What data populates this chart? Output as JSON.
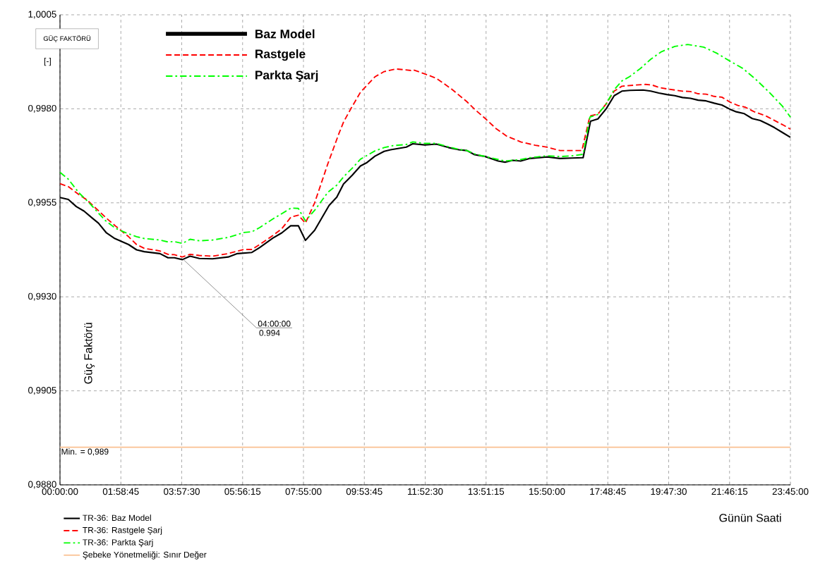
{
  "chart_data": {
    "type": "line",
    "xlabel": "Günün Saati",
    "ylabel": "Güç Faktörü",
    "xlim": [
      0,
      23.75
    ],
    "ylim": [
      0.988,
      1.0005
    ],
    "xticks": [
      {
        "value": 0,
        "label": "00:00:00"
      },
      {
        "value": 1.97917,
        "label": "01:58:45"
      },
      {
        "value": 3.95833,
        "label": "03:57:30"
      },
      {
        "value": 5.9375,
        "label": "05:56:15"
      },
      {
        "value": 7.91667,
        "label": "07:55:00"
      },
      {
        "value": 9.89583,
        "label": "09:53:45"
      },
      {
        "value": 11.875,
        "label": "11:52:30"
      },
      {
        "value": 13.85417,
        "label": "13:51:15"
      },
      {
        "value": 15.83333,
        "label": "15:50:00"
      },
      {
        "value": 17.8125,
        "label": "17:48:45"
      },
      {
        "value": 19.79167,
        "label": "19:47:30"
      },
      {
        "value": 21.77083,
        "label": "21:46:15"
      },
      {
        "value": 23.75,
        "label": "23:45:00"
      }
    ],
    "yticks": [
      {
        "value": 0.988,
        "label": "0,9880"
      },
      {
        "value": 0.9905,
        "label": "0,9905"
      },
      {
        "value": 0.993,
        "label": "0,9930"
      },
      {
        "value": 0.9955,
        "label": "0,9955"
      },
      {
        "value": 0.998,
        "label": "0,9980"
      },
      {
        "value": 1.0005,
        "label": "1,0005"
      }
    ],
    "grid": true,
    "legend": "bottom",
    "series": [
      {
        "name": "TR-36: Baz Model",
        "color": "#000000",
        "line_style": "solid",
        "x": [
          0,
          0.27,
          0.53,
          0.78,
          1.04,
          1.25,
          1.51,
          1.76,
          2.23,
          2.49,
          2.74,
          3.25,
          3.51,
          3.72,
          3.98,
          4.23,
          4.53,
          4.96,
          5.47,
          5.77,
          6.24,
          6.49,
          6.92,
          7.21,
          7.5,
          7.75,
          7.98,
          8.28,
          8.75,
          9.0,
          9.22,
          9.51,
          9.77,
          9.98,
          10.24,
          10.54,
          10.75,
          11.26,
          11.47,
          11.86,
          12.24,
          12.63,
          12.97,
          13.23,
          13.48,
          13.83,
          14.25,
          14.47,
          14.72,
          14.98,
          15.28,
          15.84,
          16.26,
          16.65,
          17.01,
          17.25,
          17.49,
          17.76,
          18.02,
          18.27,
          18.53,
          18.96,
          19.21,
          19.47,
          19.73,
          19.99,
          20.24,
          20.5,
          20.75,
          21.01,
          21.27,
          21.52,
          21.78,
          21.99,
          22.25,
          22.51,
          22.77,
          23.02,
          23.23,
          23.49,
          23.75
        ],
        "values": [
          0.99564,
          0.99559,
          0.9954,
          0.99528,
          0.9951,
          0.99496,
          0.9947,
          0.99456,
          0.99439,
          0.99425,
          0.9942,
          0.99415,
          0.99404,
          0.99404,
          0.99399,
          0.99408,
          0.99402,
          0.99401,
          0.99406,
          0.99415,
          0.99418,
          0.99431,
          0.99456,
          0.9947,
          0.99489,
          0.99489,
          0.9945,
          0.99477,
          0.99543,
          0.99565,
          0.996,
          0.99624,
          0.99648,
          0.99657,
          0.99674,
          0.99687,
          0.99691,
          0.99698,
          0.99707,
          0.99704,
          0.99706,
          0.99697,
          0.99691,
          0.99689,
          0.99678,
          0.99673,
          0.99661,
          0.99658,
          0.99663,
          0.99661,
          0.99668,
          0.99672,
          0.99668,
          0.99669,
          0.9967,
          0.99767,
          0.99773,
          0.998,
          0.99835,
          0.99847,
          0.99849,
          0.9985,
          0.99847,
          0.99842,
          0.99838,
          0.99835,
          0.9983,
          0.99828,
          0.99823,
          0.99821,
          0.99815,
          0.9981,
          0.99799,
          0.99792,
          0.99787,
          0.99774,
          0.99769,
          0.99759,
          0.9975,
          0.99737,
          0.99724
        ]
      },
      {
        "name": "TR-36: Rastgele Şarj",
        "color": "#ff0000",
        "line_style": "dashed",
        "x": [
          0,
          0.27,
          0.61,
          0.87,
          1.29,
          1.51,
          1.81,
          2.23,
          2.49,
          2.74,
          3.25,
          3.51,
          3.72,
          3.98,
          4.23,
          4.53,
          4.96,
          5.47,
          5.98,
          6.24,
          6.49,
          6.92,
          7.21,
          7.51,
          7.75,
          7.98,
          8.28,
          8.71,
          9.05,
          9.22,
          9.47,
          9.77,
          10.24,
          10.54,
          10.92,
          11.41,
          11.47,
          11.86,
          12.24,
          12.71,
          13.23,
          13.48,
          13.83,
          14.17,
          14.51,
          14.98,
          15.45,
          15.84,
          16.26,
          16.65,
          16.97,
          17.23,
          17.49,
          17.76,
          18.02,
          18.27,
          18.7,
          19.04,
          19.26,
          19.51,
          19.81,
          20.24,
          20.5,
          20.75,
          21.01,
          21.27,
          21.52,
          21.78,
          22.04,
          22.29,
          22.55,
          22.98,
          23.23,
          23.49,
          23.75
        ],
        "values": [
          0.99601,
          0.99593,
          0.99572,
          0.99558,
          0.99526,
          0.99509,
          0.99488,
          0.9946,
          0.99439,
          0.99429,
          0.99422,
          0.99413,
          0.99412,
          0.99406,
          0.99413,
          0.9941,
          0.99408,
          0.99415,
          0.99426,
          0.99426,
          0.99439,
          0.99463,
          0.99481,
          0.99512,
          0.99517,
          0.99496,
          0.9955,
          0.99654,
          0.9973,
          0.99765,
          0.99802,
          0.99844,
          0.99885,
          0.99899,
          0.99906,
          0.99902,
          0.99904,
          0.99893,
          0.99881,
          0.99854,
          0.99819,
          0.99799,
          0.99774,
          0.99748,
          0.99728,
          0.99712,
          0.99703,
          0.99698,
          0.99689,
          0.99689,
          0.99689,
          0.99781,
          0.99786,
          0.99813,
          0.99847,
          0.9986,
          0.99863,
          0.99865,
          0.99863,
          0.99856,
          0.99852,
          0.99847,
          0.99846,
          0.9984,
          0.99839,
          0.99833,
          0.99831,
          0.99818,
          0.99809,
          0.99804,
          0.99793,
          0.9978,
          0.99769,
          0.99758,
          0.99746
        ]
      },
      {
        "name": "TR-36: Parkta Şarj",
        "color": "#00ff00",
        "line_style": "dashdot",
        "x": [
          0,
          0.27,
          0.61,
          0.95,
          1.47,
          1.81,
          2.15,
          2.49,
          2.74,
          3.25,
          3.51,
          3.72,
          3.98,
          4.23,
          4.53,
          4.96,
          5.47,
          5.98,
          6.24,
          6.49,
          6.92,
          7.21,
          7.51,
          7.75,
          7.98,
          8.28,
          8.71,
          9.0,
          9.22,
          9.56,
          9.77,
          10.24,
          10.54,
          10.83,
          11.26,
          11.47,
          11.86,
          12.24,
          12.63,
          12.97,
          13.23,
          13.48,
          13.83,
          14.47,
          14.98,
          15.28,
          15.84,
          16.26,
          16.65,
          17.01,
          17.23,
          17.49,
          17.76,
          18.02,
          18.27,
          18.53,
          18.87,
          19.21,
          19.56,
          19.99,
          20.41,
          20.93,
          21.35,
          21.78,
          22.21,
          22.64,
          23.06,
          23.49,
          23.75
        ],
        "values": [
          0.99631,
          0.99613,
          0.99577,
          0.9955,
          0.99503,
          0.99482,
          0.9947,
          0.9946,
          0.99455,
          0.99451,
          0.99446,
          0.99447,
          0.99442,
          0.99453,
          0.99449,
          0.99451,
          0.99458,
          0.99471,
          0.99473,
          0.99484,
          0.99507,
          0.99521,
          0.99536,
          0.99535,
          0.99502,
          0.9953,
          0.99578,
          0.99597,
          0.99619,
          0.99647,
          0.99666,
          0.99688,
          0.99697,
          0.99702,
          0.99705,
          0.99712,
          0.99708,
          0.99708,
          0.99699,
          0.99692,
          0.99689,
          0.9968,
          0.99673,
          0.99661,
          0.99665,
          0.9967,
          0.99675,
          0.99673,
          0.99675,
          0.99679,
          0.99778,
          0.99785,
          0.99813,
          0.99851,
          0.99874,
          0.99886,
          0.99907,
          0.99932,
          0.99952,
          0.99966,
          0.99971,
          0.99964,
          0.99948,
          0.99927,
          0.99907,
          0.99877,
          0.99844,
          0.99807,
          0.99778
        ]
      }
    ],
    "ref_lines": [
      {
        "axis": "y",
        "value": 0.989,
        "label": "Şebeke Yönetmeliği: Sınır Değer",
        "color": "#fac090"
      }
    ],
    "annotations": [
      "GÜÇ FAKTÖRÜ",
      "[-]",
      "Baz Model",
      "Rastgele",
      "Parkta Şarj",
      "Min. =  0,989",
      {
        "text": "04:00:00",
        "x": 4,
        "y": 0.994
      },
      {
        "text": "0.994",
        "x": 4,
        "y": 0.994
      }
    ]
  }
}
